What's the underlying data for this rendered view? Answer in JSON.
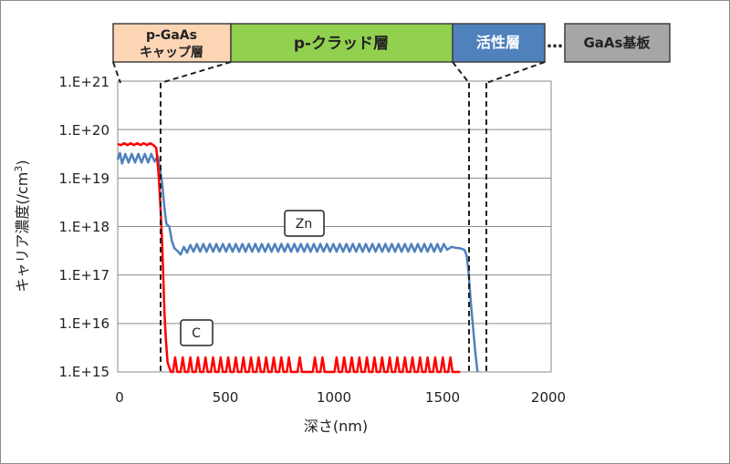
{
  "chart_data": {
    "type": "line",
    "xlabel": "深さ(nm)",
    "ylabel": "キャリア濃度(/cm3)",
    "ylabel_main": "キャリア濃度(/cm",
    "ylabel_sup": "3",
    "ylabel_close": ")",
    "xlim": [
      0,
      2000
    ],
    "ylim_log10": [
      15,
      21
    ],
    "log_scale_y": true,
    "grid": "horizontal",
    "xticks": [
      "0",
      "500",
      "1000",
      "1500",
      "2000"
    ],
    "yticks": [
      "1.E+15",
      "1.E+16",
      "1.E+17",
      "1.E+18",
      "1.E+19",
      "1.E+20",
      "1.E+21"
    ],
    "series": [
      {
        "name": "Zn",
        "color": "#4f81bd",
        "log10_values": [
          [
            0,
            19.38
          ],
          [
            10,
            19.52
          ],
          [
            20,
            19.3
          ],
          [
            35,
            19.5
          ],
          [
            50,
            19.32
          ],
          [
            65,
            19.5
          ],
          [
            80,
            19.32
          ],
          [
            95,
            19.5
          ],
          [
            110,
            19.32
          ],
          [
            125,
            19.5
          ],
          [
            140,
            19.32
          ],
          [
            155,
            19.5
          ],
          [
            170,
            19.34
          ],
          [
            185,
            19.45
          ],
          [
            195,
            19.2
          ],
          [
            205,
            18.9
          ],
          [
            215,
            18.4
          ],
          [
            225,
            18.05
          ],
          [
            238,
            18.0
          ],
          [
            250,
            17.7
          ],
          [
            262,
            17.55
          ],
          [
            275,
            17.5
          ],
          [
            290,
            17.42
          ],
          [
            305,
            17.58
          ],
          [
            320,
            17.46
          ],
          [
            335,
            17.62
          ],
          [
            350,
            17.48
          ],
          [
            365,
            17.64
          ],
          [
            380,
            17.48
          ],
          [
            395,
            17.64
          ],
          [
            410,
            17.48
          ],
          [
            425,
            17.64
          ],
          [
            440,
            17.48
          ],
          [
            455,
            17.64
          ],
          [
            470,
            17.48
          ],
          [
            485,
            17.64
          ],
          [
            500,
            17.48
          ],
          [
            515,
            17.64
          ],
          [
            530,
            17.48
          ],
          [
            545,
            17.64
          ],
          [
            560,
            17.48
          ],
          [
            575,
            17.64
          ],
          [
            590,
            17.48
          ],
          [
            605,
            17.64
          ],
          [
            620,
            17.48
          ],
          [
            635,
            17.64
          ],
          [
            650,
            17.48
          ],
          [
            665,
            17.64
          ],
          [
            680,
            17.48
          ],
          [
            695,
            17.64
          ],
          [
            710,
            17.48
          ],
          [
            725,
            17.64
          ],
          [
            740,
            17.48
          ],
          [
            755,
            17.64
          ],
          [
            770,
            17.48
          ],
          [
            785,
            17.64
          ],
          [
            800,
            17.48
          ],
          [
            815,
            17.64
          ],
          [
            830,
            17.48
          ],
          [
            845,
            17.64
          ],
          [
            860,
            17.48
          ],
          [
            875,
            17.64
          ],
          [
            890,
            17.48
          ],
          [
            905,
            17.64
          ],
          [
            920,
            17.48
          ],
          [
            935,
            17.64
          ],
          [
            950,
            17.48
          ],
          [
            965,
            17.64
          ],
          [
            980,
            17.48
          ],
          [
            995,
            17.64
          ],
          [
            1010,
            17.48
          ],
          [
            1025,
            17.64
          ],
          [
            1040,
            17.48
          ],
          [
            1055,
            17.64
          ],
          [
            1070,
            17.48
          ],
          [
            1085,
            17.64
          ],
          [
            1100,
            17.48
          ],
          [
            1115,
            17.64
          ],
          [
            1130,
            17.48
          ],
          [
            1145,
            17.64
          ],
          [
            1160,
            17.48
          ],
          [
            1175,
            17.64
          ],
          [
            1190,
            17.48
          ],
          [
            1205,
            17.64
          ],
          [
            1220,
            17.48
          ],
          [
            1235,
            17.64
          ],
          [
            1250,
            17.48
          ],
          [
            1265,
            17.64
          ],
          [
            1280,
            17.48
          ],
          [
            1295,
            17.64
          ],
          [
            1310,
            17.48
          ],
          [
            1325,
            17.64
          ],
          [
            1340,
            17.48
          ],
          [
            1355,
            17.64
          ],
          [
            1370,
            17.48
          ],
          [
            1385,
            17.64
          ],
          [
            1400,
            17.48
          ],
          [
            1415,
            17.64
          ],
          [
            1430,
            17.48
          ],
          [
            1445,
            17.64
          ],
          [
            1460,
            17.48
          ],
          [
            1475,
            17.64
          ],
          [
            1490,
            17.48
          ],
          [
            1505,
            17.64
          ],
          [
            1520,
            17.52
          ],
          [
            1540,
            17.58
          ],
          [
            1560,
            17.56
          ],
          [
            1580,
            17.55
          ],
          [
            1600,
            17.52
          ],
          [
            1610,
            17.4
          ],
          [
            1620,
            17.0
          ],
          [
            1630,
            16.4
          ],
          [
            1640,
            15.9
          ],
          [
            1650,
            15.4
          ],
          [
            1660,
            15.0
          ]
        ]
      },
      {
        "name": "C",
        "color": "#ff0000",
        "log10_values": [
          [
            0,
            19.7
          ],
          [
            15,
            19.68
          ],
          [
            30,
            19.72
          ],
          [
            45,
            19.68
          ],
          [
            60,
            19.72
          ],
          [
            75,
            19.68
          ],
          [
            90,
            19.72
          ],
          [
            105,
            19.68
          ],
          [
            120,
            19.72
          ],
          [
            135,
            19.68
          ],
          [
            150,
            19.72
          ],
          [
            165,
            19.68
          ],
          [
            178,
            19.62
          ],
          [
            188,
            19.1
          ],
          [
            196,
            18.5
          ],
          [
            204,
            17.8
          ],
          [
            210,
            17.0
          ],
          [
            216,
            16.2
          ],
          [
            222,
            15.7
          ],
          [
            230,
            15.2
          ],
          [
            245,
            15.0
          ],
          [
            255,
            15.0
          ],
          [
            265,
            15.3
          ],
          [
            275,
            15.0
          ],
          [
            290,
            15.0
          ],
          [
            300,
            15.3
          ],
          [
            310,
            15.0
          ],
          [
            325,
            15.0
          ],
          [
            335,
            15.3
          ],
          [
            345,
            15.0
          ],
          [
            360,
            15.0
          ],
          [
            370,
            15.3
          ],
          [
            380,
            15.0
          ],
          [
            395,
            15.0
          ],
          [
            405,
            15.3
          ],
          [
            415,
            15.0
          ],
          [
            430,
            15.0
          ],
          [
            440,
            15.3
          ],
          [
            450,
            15.0
          ],
          [
            465,
            15.0
          ],
          [
            475,
            15.3
          ],
          [
            485,
            15.0
          ],
          [
            500,
            15.0
          ],
          [
            510,
            15.3
          ],
          [
            520,
            15.0
          ],
          [
            535,
            15.0
          ],
          [
            545,
            15.3
          ],
          [
            555,
            15.0
          ],
          [
            570,
            15.0
          ],
          [
            580,
            15.3
          ],
          [
            590,
            15.0
          ],
          [
            605,
            15.0
          ],
          [
            615,
            15.3
          ],
          [
            625,
            15.0
          ],
          [
            640,
            15.0
          ],
          [
            650,
            15.3
          ],
          [
            660,
            15.0
          ],
          [
            675,
            15.0
          ],
          [
            685,
            15.3
          ],
          [
            695,
            15.0
          ],
          [
            710,
            15.0
          ],
          [
            720,
            15.3
          ],
          [
            730,
            15.0
          ],
          [
            745,
            15.0
          ],
          [
            755,
            15.3
          ],
          [
            765,
            15.0
          ],
          [
            780,
            15.0
          ],
          [
            790,
            15.3
          ],
          [
            800,
            15.0
          ],
          [
            830,
            15.0
          ],
          [
            840,
            15.3
          ],
          [
            850,
            15.0
          ],
          [
            900,
            15.0
          ],
          [
            910,
            15.3
          ],
          [
            920,
            15.0
          ],
          [
            935,
            15.0
          ],
          [
            945,
            15.3
          ],
          [
            955,
            15.0
          ],
          [
            1000,
            15.0
          ],
          [
            1010,
            15.3
          ],
          [
            1020,
            15.0
          ],
          [
            1035,
            15.0
          ],
          [
            1045,
            15.3
          ],
          [
            1055,
            15.0
          ],
          [
            1070,
            15.0
          ],
          [
            1080,
            15.3
          ],
          [
            1090,
            15.0
          ],
          [
            1105,
            15.0
          ],
          [
            1115,
            15.3
          ],
          [
            1125,
            15.0
          ],
          [
            1140,
            15.0
          ],
          [
            1150,
            15.3
          ],
          [
            1160,
            15.0
          ],
          [
            1175,
            15.0
          ],
          [
            1185,
            15.3
          ],
          [
            1195,
            15.0
          ],
          [
            1210,
            15.0
          ],
          [
            1220,
            15.3
          ],
          [
            1230,
            15.0
          ],
          [
            1245,
            15.0
          ],
          [
            1255,
            15.3
          ],
          [
            1265,
            15.0
          ],
          [
            1280,
            15.0
          ],
          [
            1290,
            15.3
          ],
          [
            1300,
            15.0
          ],
          [
            1315,
            15.0
          ],
          [
            1325,
            15.3
          ],
          [
            1335,
            15.0
          ],
          [
            1350,
            15.0
          ],
          [
            1360,
            15.3
          ],
          [
            1370,
            15.0
          ],
          [
            1385,
            15.0
          ],
          [
            1395,
            15.3
          ],
          [
            1405,
            15.0
          ],
          [
            1420,
            15.0
          ],
          [
            1430,
            15.3
          ],
          [
            1440,
            15.0
          ],
          [
            1455,
            15.0
          ],
          [
            1465,
            15.3
          ],
          [
            1475,
            15.0
          ],
          [
            1490,
            15.0
          ],
          [
            1500,
            15.3
          ],
          [
            1510,
            15.0
          ],
          [
            1525,
            15.0
          ],
          [
            1535,
            15.3
          ],
          [
            1545,
            15.0
          ],
          [
            1580,
            15.0
          ]
        ]
      }
    ],
    "annotations": [
      "Zn",
      "C"
    ],
    "layers": [
      {
        "name_line1": "p-GaAs",
        "name_line2": "キャップ層",
        "color": "#fcd5b5",
        "x_start": 0,
        "x_end": 200
      },
      {
        "name_line1": "p-クラッド層",
        "name_line2": "",
        "color": "#92d050",
        "x_start": 200,
        "x_end": 1620
      },
      {
        "name_line1": "活性層",
        "name_line2": "",
        "color": "#4f81bd",
        "x_start": 1620,
        "x_end": 1700
      },
      {
        "name_line1": "GaAs基板",
        "name_line2": "",
        "color": "#a6a6a6",
        "x_start": 1700,
        "x_end": 2000
      }
    ],
    "ellipsis": "…"
  }
}
